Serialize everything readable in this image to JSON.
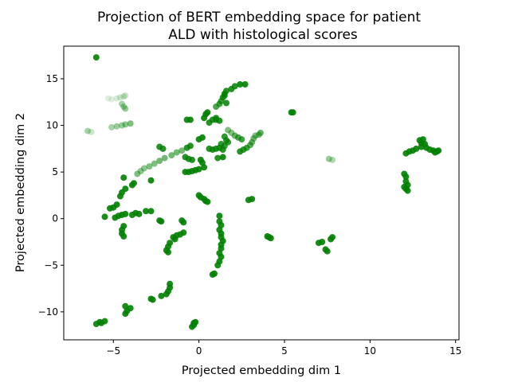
{
  "chart_data": {
    "type": "scatter",
    "title_lines": [
      "Projection of BERT embedding space for patient",
      "ALD with histological scores"
    ],
    "xlabel": "Projected embedding dim 1",
    "ylabel": "Projected embedding dim 2",
    "xlim": [
      -7.9,
      15.2
    ],
    "ylim": [
      -13.0,
      18.5
    ],
    "xticks": [
      -5,
      0,
      5,
      10,
      15
    ],
    "xtick_labels": [
      "−5",
      "0",
      "5",
      "10",
      "15"
    ],
    "yticks": [
      -10,
      -5,
      0,
      5,
      10,
      15
    ],
    "ytick_labels": [
      "−10",
      "−5",
      "0",
      "5",
      "10",
      "15"
    ],
    "grid": false,
    "marker_color": "#008000",
    "points": [
      {
        "x": -6.0,
        "y": 17.3,
        "a": 0.9
      },
      {
        "x": -6.5,
        "y": 9.4,
        "a": 0.35
      },
      {
        "x": -6.3,
        "y": 9.3,
        "a": 0.2
      },
      {
        "x": -5.3,
        "y": 12.9,
        "a": 0.12
      },
      {
        "x": -5.1,
        "y": 12.8,
        "a": 0.12
      },
      {
        "x": -4.8,
        "y": 12.9,
        "a": 0.15
      },
      {
        "x": -4.6,
        "y": 13.0,
        "a": 0.18
      },
      {
        "x": -4.4,
        "y": 13.1,
        "a": 0.2
      },
      {
        "x": -4.3,
        "y": 13.2,
        "a": 0.2
      },
      {
        "x": -4.5,
        "y": 12.3,
        "a": 0.35
      },
      {
        "x": -4.4,
        "y": 12.0,
        "a": 0.35
      },
      {
        "x": -4.3,
        "y": 11.8,
        "a": 0.4
      },
      {
        "x": -5.1,
        "y": 9.8,
        "a": 0.35
      },
      {
        "x": -4.8,
        "y": 9.9,
        "a": 0.4
      },
      {
        "x": -4.5,
        "y": 10.0,
        "a": 0.4
      },
      {
        "x": -4.3,
        "y": 10.1,
        "a": 0.45
      },
      {
        "x": -4.0,
        "y": 10.2,
        "a": 0.5
      },
      {
        "x": -3.6,
        "y": 4.8,
        "a": 0.5
      },
      {
        "x": -3.4,
        "y": 5.1,
        "a": 0.45
      },
      {
        "x": -3.2,
        "y": 5.4,
        "a": 0.45
      },
      {
        "x": -2.9,
        "y": 5.6,
        "a": 0.5
      },
      {
        "x": -2.6,
        "y": 5.9,
        "a": 0.5
      },
      {
        "x": -2.3,
        "y": 6.2,
        "a": 0.55
      },
      {
        "x": -2.0,
        "y": 6.5,
        "a": 0.55
      },
      {
        "x": -1.6,
        "y": 6.8,
        "a": 0.55
      },
      {
        "x": -1.3,
        "y": 7.1,
        "a": 0.55
      },
      {
        "x": -1.0,
        "y": 7.3,
        "a": 0.55
      },
      {
        "x": -2.3,
        "y": 7.7,
        "a": 0.85
      },
      {
        "x": -2.1,
        "y": 7.5,
        "a": 0.85
      },
      {
        "x": -0.7,
        "y": 7.6,
        "a": 0.85
      },
      {
        "x": -0.5,
        "y": 7.8,
        "a": 0.85
      },
      {
        "x": -0.8,
        "y": 6.6,
        "a": 0.85
      },
      {
        "x": -0.6,
        "y": 6.4,
        "a": 0.85
      },
      {
        "x": -0.4,
        "y": 6.3,
        "a": 0.85
      },
      {
        "x": -0.8,
        "y": 5.0,
        "a": 0.9
      },
      {
        "x": -0.6,
        "y": 5.0,
        "a": 0.9
      },
      {
        "x": -0.4,
        "y": 5.1,
        "a": 0.9
      },
      {
        "x": -0.2,
        "y": 5.2,
        "a": 0.9
      },
      {
        "x": 0.0,
        "y": 5.3,
        "a": 0.9
      },
      {
        "x": 0.1,
        "y": 6.3,
        "a": 0.9
      },
      {
        "x": 0.2,
        "y": 6.0,
        "a": 0.9
      },
      {
        "x": 0.3,
        "y": 5.5,
        "a": 0.9
      },
      {
        "x": 0.0,
        "y": 8.5,
        "a": 0.9
      },
      {
        "x": 0.2,
        "y": 8.7,
        "a": 0.9
      },
      {
        "x": -0.7,
        "y": 10.6,
        "a": 0.9
      },
      {
        "x": -0.5,
        "y": 10.6,
        "a": 0.9
      },
      {
        "x": 0.3,
        "y": 10.8,
        "a": 0.9
      },
      {
        "x": 0.4,
        "y": 11.2,
        "a": 0.9
      },
      {
        "x": 0.5,
        "y": 11.4,
        "a": 0.9
      },
      {
        "x": 0.6,
        "y": 10.3,
        "a": 0.85
      },
      {
        "x": 0.8,
        "y": 10.6,
        "a": 0.85
      },
      {
        "x": 1.0,
        "y": 10.8,
        "a": 0.85
      },
      {
        "x": 1.0,
        "y": 10.6,
        "a": 0.85
      },
      {
        "x": 1.2,
        "y": 10.5,
        "a": 0.85
      },
      {
        "x": 1.0,
        "y": 12.0,
        "a": 0.7
      },
      {
        "x": 1.2,
        "y": 12.3,
        "a": 0.75
      },
      {
        "x": 1.3,
        "y": 12.6,
        "a": 0.75
      },
      {
        "x": 1.4,
        "y": 13.0,
        "a": 0.85
      },
      {
        "x": 1.5,
        "y": 13.4,
        "a": 0.85
      },
      {
        "x": 1.6,
        "y": 13.7,
        "a": 0.85
      },
      {
        "x": 1.5,
        "y": 13.2,
        "a": 0.85
      },
      {
        "x": 1.6,
        "y": 12.4,
        "a": 0.85
      },
      {
        "x": 1.9,
        "y": 13.9,
        "a": 0.85
      },
      {
        "x": 2.1,
        "y": 14.2,
        "a": 0.85
      },
      {
        "x": 2.4,
        "y": 14.4,
        "a": 0.9
      },
      {
        "x": 2.7,
        "y": 14.4,
        "a": 0.9
      },
      {
        "x": 1.7,
        "y": 9.5,
        "a": 0.5
      },
      {
        "x": 1.9,
        "y": 9.2,
        "a": 0.5
      },
      {
        "x": 2.1,
        "y": 8.9,
        "a": 0.6
      },
      {
        "x": 2.3,
        "y": 8.7,
        "a": 0.7
      },
      {
        "x": 2.5,
        "y": 8.5,
        "a": 0.75
      },
      {
        "x": 1.5,
        "y": 8.8,
        "a": 0.8
      },
      {
        "x": 1.6,
        "y": 8.4,
        "a": 0.8
      },
      {
        "x": 1.7,
        "y": 8.2,
        "a": 0.8
      },
      {
        "x": 1.3,
        "y": 8.0,
        "a": 0.8
      },
      {
        "x": 1.5,
        "y": 7.8,
        "a": 0.8
      },
      {
        "x": 0.6,
        "y": 7.5,
        "a": 0.85
      },
      {
        "x": 0.8,
        "y": 7.4,
        "a": 0.85
      },
      {
        "x": 1.0,
        "y": 7.5,
        "a": 0.85
      },
      {
        "x": 1.2,
        "y": 7.6,
        "a": 0.85
      },
      {
        "x": 1.4,
        "y": 7.4,
        "a": 0.85
      },
      {
        "x": 1.1,
        "y": 6.5,
        "a": 0.85
      },
      {
        "x": 1.4,
        "y": 6.6,
        "a": 0.9
      },
      {
        "x": 2.4,
        "y": 7.2,
        "a": 0.85
      },
      {
        "x": 2.6,
        "y": 7.4,
        "a": 0.8
      },
      {
        "x": 2.8,
        "y": 7.6,
        "a": 0.75
      },
      {
        "x": 3.0,
        "y": 7.9,
        "a": 0.65
      },
      {
        "x": 3.1,
        "y": 8.2,
        "a": 0.6
      },
      {
        "x": 3.2,
        "y": 8.6,
        "a": 0.55
      },
      {
        "x": 3.3,
        "y": 8.9,
        "a": 0.5
      },
      {
        "x": 3.5,
        "y": 9.0,
        "a": 0.55
      },
      {
        "x": 3.6,
        "y": 9.2,
        "a": 0.6
      },
      {
        "x": 5.4,
        "y": 11.4,
        "a": 0.9
      },
      {
        "x": 5.5,
        "y": 11.4,
        "a": 0.9
      },
      {
        "x": 7.6,
        "y": 6.4,
        "a": 0.4
      },
      {
        "x": 7.8,
        "y": 6.3,
        "a": 0.3
      },
      {
        "x": 12.0,
        "y": 4.8,
        "a": 0.9
      },
      {
        "x": 12.1,
        "y": 4.5,
        "a": 0.9
      },
      {
        "x": 12.1,
        "y": 4.0,
        "a": 0.9
      },
      {
        "x": 12.2,
        "y": 3.6,
        "a": 0.9
      },
      {
        "x": 12.1,
        "y": 3.2,
        "a": 0.9
      },
      {
        "x": 12.2,
        "y": 3.0,
        "a": 0.9
      },
      {
        "x": 12.0,
        "y": 3.4,
        "a": 0.9
      },
      {
        "x": 12.1,
        "y": 7.0,
        "a": 0.9
      },
      {
        "x": 12.3,
        "y": 7.2,
        "a": 0.9
      },
      {
        "x": 12.5,
        "y": 7.3,
        "a": 0.9
      },
      {
        "x": 12.7,
        "y": 7.5,
        "a": 0.9
      },
      {
        "x": 12.9,
        "y": 8.4,
        "a": 0.9
      },
      {
        "x": 13.1,
        "y": 8.5,
        "a": 0.9
      },
      {
        "x": 13.0,
        "y": 8.1,
        "a": 0.9
      },
      {
        "x": 13.2,
        "y": 8.0,
        "a": 0.9
      },
      {
        "x": 13.0,
        "y": 7.7,
        "a": 0.9
      },
      {
        "x": 13.3,
        "y": 7.6,
        "a": 0.9
      },
      {
        "x": 13.5,
        "y": 7.4,
        "a": 0.9
      },
      {
        "x": 13.7,
        "y": 7.3,
        "a": 0.9
      },
      {
        "x": 13.9,
        "y": 7.2,
        "a": 0.9
      },
      {
        "x": 14.0,
        "y": 7.3,
        "a": 0.9
      },
      {
        "x": 13.8,
        "y": 7.1,
        "a": 0.9
      },
      {
        "x": -4.4,
        "y": 4.4,
        "a": 0.9
      },
      {
        "x": -4.3,
        "y": 3.2,
        "a": 0.9
      },
      {
        "x": -4.5,
        "y": 2.8,
        "a": 0.9
      },
      {
        "x": -4.6,
        "y": 2.4,
        "a": 0.9
      },
      {
        "x": -4.8,
        "y": 1.5,
        "a": 0.9
      },
      {
        "x": -5.0,
        "y": 1.2,
        "a": 0.9
      },
      {
        "x": -5.2,
        "y": 1.1,
        "a": 0.9
      },
      {
        "x": -3.8,
        "y": 3.8,
        "a": 0.9
      },
      {
        "x": -3.9,
        "y": 3.6,
        "a": 0.9
      },
      {
        "x": -5.5,
        "y": 0.2,
        "a": 0.9
      },
      {
        "x": -4.9,
        "y": 0.1,
        "a": 0.9
      },
      {
        "x": -4.7,
        "y": 0.3,
        "a": 0.9
      },
      {
        "x": -4.5,
        "y": 0.4,
        "a": 0.9
      },
      {
        "x": -4.3,
        "y": 0.5,
        "a": 0.9
      },
      {
        "x": -3.7,
        "y": 0.6,
        "a": 0.9
      },
      {
        "x": -3.9,
        "y": 0.4,
        "a": 0.9
      },
      {
        "x": -3.5,
        "y": 0.5,
        "a": 0.9
      },
      {
        "x": -3.1,
        "y": 0.8,
        "a": 0.9
      },
      {
        "x": -4.4,
        "y": -0.8,
        "a": 0.9
      },
      {
        "x": -4.5,
        "y": -1.2,
        "a": 0.9
      },
      {
        "x": -4.5,
        "y": -1.6,
        "a": 0.9
      },
      {
        "x": -4.4,
        "y": -1.9,
        "a": 0.9
      },
      {
        "x": -2.8,
        "y": 4.1,
        "a": 0.9
      },
      {
        "x": -2.3,
        "y": -0.2,
        "a": 0.9
      },
      {
        "x": -2.2,
        "y": -0.3,
        "a": 0.9
      },
      {
        "x": -1.0,
        "y": -0.2,
        "a": 0.9
      },
      {
        "x": -0.9,
        "y": -0.4,
        "a": 0.9
      },
      {
        "x": -0.9,
        "y": -1.5,
        "a": 0.9
      },
      {
        "x": -1.1,
        "y": -1.7,
        "a": 0.9
      },
      {
        "x": -1.3,
        "y": -1.8,
        "a": 0.9
      },
      {
        "x": -1.5,
        "y": -2.0,
        "a": 0.9
      },
      {
        "x": -1.4,
        "y": -2.2,
        "a": 0.9
      },
      {
        "x": -1.7,
        "y": -2.6,
        "a": 0.9
      },
      {
        "x": -1.8,
        "y": -3.0,
        "a": 0.9
      },
      {
        "x": -1.9,
        "y": -3.4,
        "a": 0.9
      },
      {
        "x": -1.8,
        "y": -3.6,
        "a": 0.9
      },
      {
        "x": 0.0,
        "y": 2.5,
        "a": 0.9
      },
      {
        "x": 0.1,
        "y": 2.3,
        "a": 0.9
      },
      {
        "x": 0.3,
        "y": 2.1,
        "a": 0.9
      },
      {
        "x": 0.4,
        "y": 1.9,
        "a": 0.9
      },
      {
        "x": 0.5,
        "y": 1.8,
        "a": 0.9
      },
      {
        "x": 1.2,
        "y": 0.3,
        "a": 0.9
      },
      {
        "x": 1.2,
        "y": -0.3,
        "a": 0.9
      },
      {
        "x": 1.3,
        "y": -0.7,
        "a": 0.9
      },
      {
        "x": 1.2,
        "y": -1.2,
        "a": 0.9
      },
      {
        "x": 1.3,
        "y": -1.6,
        "a": 0.9
      },
      {
        "x": 1.3,
        "y": -2.0,
        "a": 0.9
      },
      {
        "x": 1.4,
        "y": -2.4,
        "a": 0.9
      },
      {
        "x": 1.3,
        "y": -2.8,
        "a": 0.9
      },
      {
        "x": 1.3,
        "y": -3.2,
        "a": 0.9
      },
      {
        "x": 1.2,
        "y": -3.7,
        "a": 0.9
      },
      {
        "x": 1.3,
        "y": -4.1,
        "a": 0.9
      },
      {
        "x": 1.2,
        "y": -4.6,
        "a": 0.9
      },
      {
        "x": 1.1,
        "y": -5.0,
        "a": 0.9
      },
      {
        "x": 0.9,
        "y": -5.9,
        "a": 0.9
      },
      {
        "x": 0.8,
        "y": -6.0,
        "a": 0.9
      },
      {
        "x": 2.9,
        "y": 2.0,
        "a": 0.9
      },
      {
        "x": 3.1,
        "y": 2.1,
        "a": 0.9
      },
      {
        "x": 4.0,
        "y": -1.9,
        "a": 0.9
      },
      {
        "x": 4.1,
        "y": -2.0,
        "a": 0.9
      },
      {
        "x": 4.2,
        "y": -2.1,
        "a": 0.9
      },
      {
        "x": 7.0,
        "y": -2.6,
        "a": 0.9
      },
      {
        "x": 7.2,
        "y": -2.5,
        "a": 0.9
      },
      {
        "x": 7.4,
        "y": -3.3,
        "a": 0.9
      },
      {
        "x": 7.5,
        "y": -3.5,
        "a": 0.9
      },
      {
        "x": 7.7,
        "y": -2.2,
        "a": 0.9
      },
      {
        "x": 7.8,
        "y": -2.0,
        "a": 0.9
      },
      {
        "x": -2.8,
        "y": 0.8,
        "a": 0.9
      },
      {
        "x": -1.7,
        "y": -7.0,
        "a": 0.9
      },
      {
        "x": -1.7,
        "y": -7.4,
        "a": 0.9
      },
      {
        "x": -1.8,
        "y": -7.8,
        "a": 0.9
      },
      {
        "x": -1.9,
        "y": -8.1,
        "a": 0.9
      },
      {
        "x": -2.2,
        "y": -8.3,
        "a": 0.9
      },
      {
        "x": -2.8,
        "y": -8.6,
        "a": 0.9
      },
      {
        "x": -2.7,
        "y": -8.7,
        "a": 0.9
      },
      {
        "x": -4.3,
        "y": -9.4,
        "a": 0.9
      },
      {
        "x": -4.0,
        "y": -9.6,
        "a": 0.9
      },
      {
        "x": -4.2,
        "y": -9.9,
        "a": 0.9
      },
      {
        "x": -4.3,
        "y": -10.2,
        "a": 0.9
      },
      {
        "x": -6.0,
        "y": -11.3,
        "a": 0.9
      },
      {
        "x": -5.7,
        "y": -11.2,
        "a": 0.9
      },
      {
        "x": -5.5,
        "y": -11.0,
        "a": 0.9
      },
      {
        "x": -5.8,
        "y": -11.1,
        "a": 0.9
      },
      {
        "x": -0.4,
        "y": -11.6,
        "a": 0.9
      },
      {
        "x": -0.3,
        "y": -11.4,
        "a": 0.9
      },
      {
        "x": -0.3,
        "y": -11.2,
        "a": 0.9
      },
      {
        "x": -0.2,
        "y": -11.1,
        "a": 0.9
      }
    ]
  }
}
